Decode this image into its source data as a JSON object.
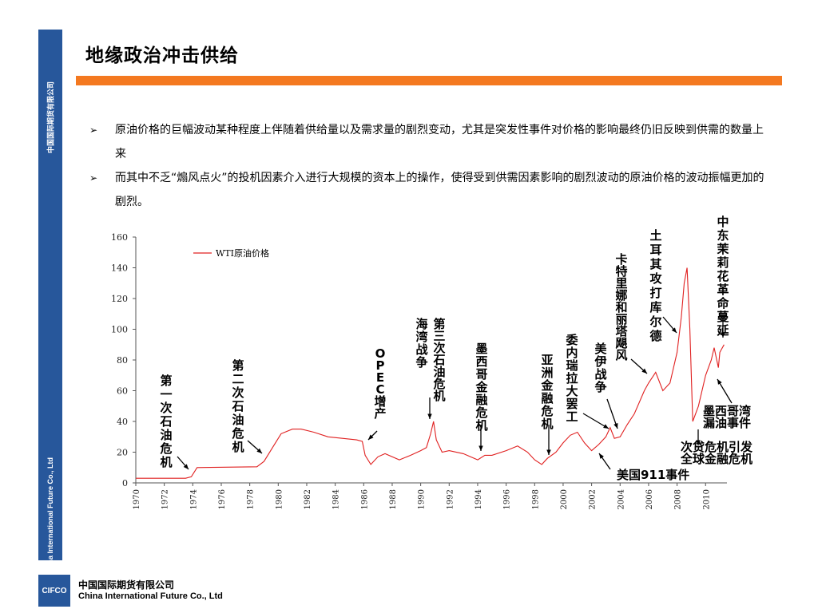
{
  "sidebar": {
    "company_cn": "中国国际期货有限公司",
    "company_en": "China International Future Co., Ltd"
  },
  "slide": {
    "title": "地缘政治冲击供给",
    "bullets": [
      "原油价格的巨幅波动某种程度上伴随着供给量以及需求量的剧烈变动，尤其是突发性事件对价格的影响最终仍旧反映到供需的数量上来",
      "而其中不乏“煽风点火”的投机因素介入进行大规模的资本上的操作，使得受到供需因素影响的剧烈波动的原油价格的波动振幅更加的剧烈。"
    ],
    "bullet_marker": "➢"
  },
  "chart_data": {
    "type": "line",
    "legend": "WTI原油价格",
    "line_color": "#e02020",
    "ylim": [
      0,
      160
    ],
    "y_ticks": [
      "0",
      "20",
      "40",
      "60",
      "80",
      "100",
      "120",
      "140",
      "160"
    ],
    "xlim": [
      1970,
      2011.5
    ],
    "x_ticks": [
      "1970",
      "1972",
      "1974",
      "1976",
      "1978",
      "1980",
      "1982",
      "1984",
      "1986",
      "1988",
      "1990",
      "1992",
      "1994",
      "1996",
      "1998",
      "2000",
      "2002",
      "2004",
      "2006",
      "2008",
      "2010"
    ],
    "series": [
      {
        "name": "WTI原油价格",
        "x": [
          1970,
          1973.5,
          1973.9,
          1974.3,
          1978.5,
          1979.0,
          1979.6,
          1980.2,
          1981.0,
          1981.6,
          1982.5,
          1983.5,
          1984.5,
          1985.5,
          1985.9,
          1986.1,
          1986.5,
          1987.0,
          1987.5,
          1988.5,
          1989.3,
          1990.0,
          1990.4,
          1990.7,
          1990.9,
          1991.1,
          1991.5,
          1992.0,
          1993.0,
          1993.5,
          1994.0,
          1994.5,
          1995.0,
          1996.0,
          1996.8,
          1997.5,
          1998.0,
          1998.5,
          1998.9,
          1999.5,
          2000.0,
          2000.5,
          2001.0,
          2001.5,
          2002.0,
          2002.5,
          2003.0,
          2003.3,
          2003.6,
          2004.0,
          2004.5,
          2005.0,
          2005.7,
          2006.0,
          2006.5,
          2007.0,
          2007.5,
          2008.0,
          2008.3,
          2008.5,
          2008.7,
          2008.9,
          2009.1,
          2009.5,
          2010.0,
          2010.4,
          2010.6,
          2010.9,
          2011.0,
          2011.3
        ],
        "y": [
          3,
          3,
          4,
          10,
          10.5,
          14,
          23,
          32,
          35,
          35,
          33,
          30,
          29,
          28,
          27,
          18,
          12,
          17,
          19,
          15,
          18,
          21,
          23,
          32,
          40,
          28,
          20,
          21,
          19,
          17,
          15,
          18,
          18,
          21,
          24,
          20,
          15,
          12,
          16,
          20,
          26,
          31,
          33,
          26,
          21,
          25,
          30,
          36,
          29,
          30,
          38,
          45,
          60,
          65,
          72,
          60,
          65,
          85,
          108,
          130,
          140,
          100,
          40,
          50,
          70,
          80,
          88,
          75,
          85,
          90
        ]
      }
    ],
    "annotations": [
      "第一次石油危机",
      "第二次石油危机",
      "OPEC增产",
      "海湾战争",
      "第三次石油危机",
      "墨西哥金融危机",
      "亚洲金融危机",
      "委内瑞拉大罢工",
      "美伊战争",
      "卡特里娜和丽塔飓风",
      "土耳其攻打库尔德",
      "中东茉莉花革命蔓延",
      "美国911事件",
      "次贷危机引发",
      "全球金融危机",
      "墨西哥湾",
      "漏油事件"
    ]
  },
  "footer": {
    "logo_text": "CIFCO",
    "company_cn": "中国国际期货有限公司",
    "company_en": "China International Future Co., Ltd"
  }
}
